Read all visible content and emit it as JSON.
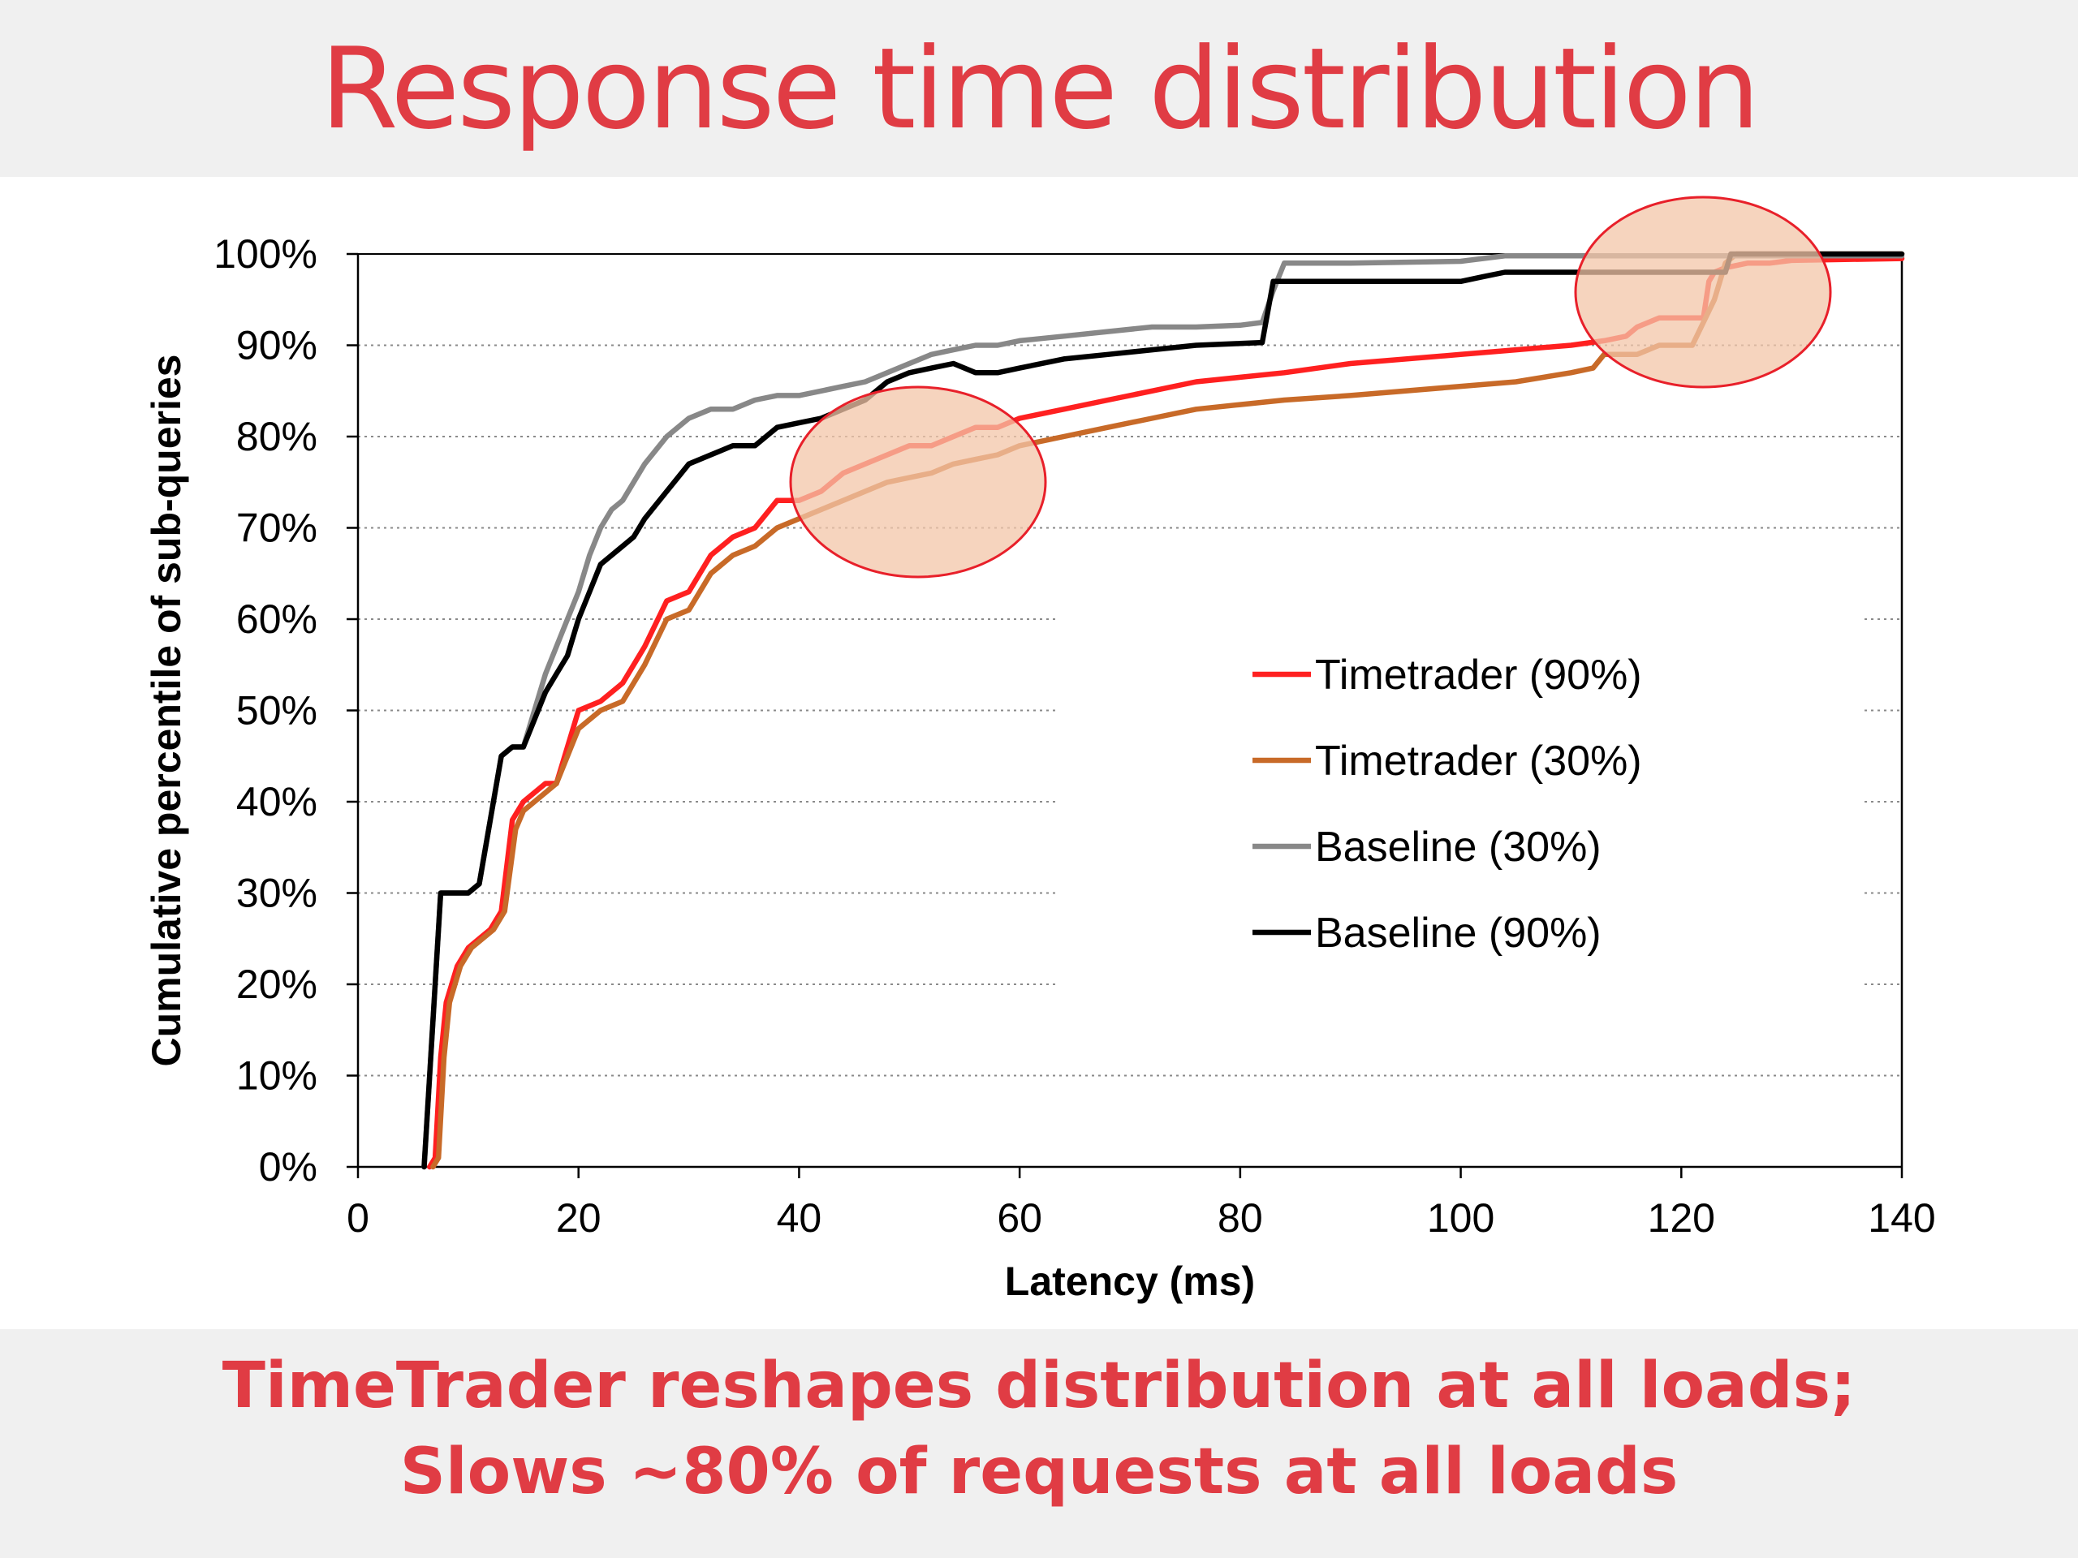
{
  "slide": {
    "title": "Response time distribution",
    "footer_lines": [
      "TimeTrader reshapes distribution at all loads;",
      "Slows ~80% of requests at all loads"
    ]
  },
  "colors": {
    "title": "#e03c44",
    "band": "#f0f0f0",
    "highlight_fill": "#f3c6a8",
    "highlight_stroke": "#e8202a"
  },
  "chart_data": {
    "type": "line",
    "xlabel": "Latency (ms)",
    "ylabel": "Cumulative percentile of sub-queries",
    "xlim": [
      0,
      140
    ],
    "ylim": [
      0,
      100
    ],
    "x_ticks": [
      0,
      20,
      40,
      60,
      80,
      100,
      120,
      140
    ],
    "y_ticks": [
      0,
      10,
      20,
      30,
      40,
      50,
      60,
      70,
      80,
      90,
      100
    ],
    "y_tick_suffix": "%",
    "grid": "horizontal dotted",
    "legend_position": "right-middle",
    "series": [
      {
        "name": "Timetrader (90%)",
        "color": "#ff2020",
        "points": [
          [
            6.5,
            0
          ],
          [
            7,
            1
          ],
          [
            7.5,
            12
          ],
          [
            8,
            18
          ],
          [
            9,
            22
          ],
          [
            10,
            24
          ],
          [
            11,
            25
          ],
          [
            12,
            26
          ],
          [
            13,
            28
          ],
          [
            14,
            38
          ],
          [
            15,
            40
          ],
          [
            16,
            41
          ],
          [
            17,
            42
          ],
          [
            18,
            42
          ],
          [
            19,
            46
          ],
          [
            20,
            50
          ],
          [
            22,
            51
          ],
          [
            24,
            53
          ],
          [
            26,
            57
          ],
          [
            28,
            62
          ],
          [
            30,
            63
          ],
          [
            32,
            67
          ],
          [
            34,
            69
          ],
          [
            36,
            70
          ],
          [
            38,
            73
          ],
          [
            40,
            73
          ],
          [
            42,
            74
          ],
          [
            44,
            76
          ],
          [
            46,
            77
          ],
          [
            48,
            78
          ],
          [
            50,
            79
          ],
          [
            52,
            79
          ],
          [
            54,
            80
          ],
          [
            56,
            81
          ],
          [
            58,
            81
          ],
          [
            60,
            82
          ],
          [
            64,
            83
          ],
          [
            68,
            84
          ],
          [
            72,
            85
          ],
          [
            76,
            86
          ],
          [
            80,
            86.5
          ],
          [
            84,
            87
          ],
          [
            90,
            88
          ],
          [
            100,
            89
          ],
          [
            105,
            89.5
          ],
          [
            110,
            90
          ],
          [
            113,
            90.5
          ],
          [
            115,
            91
          ],
          [
            116,
            92
          ],
          [
            118,
            93
          ],
          [
            120,
            93
          ],
          [
            122,
            93
          ],
          [
            122.5,
            97
          ],
          [
            123,
            98
          ],
          [
            124,
            98.5
          ],
          [
            126,
            99
          ],
          [
            128,
            99
          ],
          [
            130,
            99.3
          ],
          [
            140,
            99.5
          ]
        ]
      },
      {
        "name": "Timetrader (30%)",
        "color": "#c86a28",
        "points": [
          [
            6.8,
            0
          ],
          [
            7.3,
            1
          ],
          [
            7.8,
            12
          ],
          [
            8.3,
            18
          ],
          [
            9.3,
            22
          ],
          [
            10.3,
            24
          ],
          [
            11.3,
            25
          ],
          [
            12.3,
            26
          ],
          [
            13.3,
            28
          ],
          [
            14.3,
            37
          ],
          [
            15,
            39
          ],
          [
            16,
            40
          ],
          [
            17,
            41
          ],
          [
            18,
            42
          ],
          [
            19,
            45
          ],
          [
            20,
            48
          ],
          [
            22,
            50
          ],
          [
            24,
            51
          ],
          [
            26,
            55
          ],
          [
            28,
            60
          ],
          [
            30,
            61
          ],
          [
            32,
            65
          ],
          [
            34,
            67
          ],
          [
            36,
            68
          ],
          [
            38,
            70
          ],
          [
            40,
            71
          ],
          [
            42,
            72
          ],
          [
            44,
            73
          ],
          [
            46,
            74
          ],
          [
            48,
            75
          ],
          [
            50,
            75.5
          ],
          [
            52,
            76
          ],
          [
            54,
            77
          ],
          [
            56,
            77.5
          ],
          [
            58,
            78
          ],
          [
            60,
            79
          ],
          [
            64,
            80
          ],
          [
            68,
            81
          ],
          [
            72,
            82
          ],
          [
            76,
            83
          ],
          [
            80,
            83.5
          ],
          [
            84,
            84
          ],
          [
            90,
            84.5
          ],
          [
            100,
            85.5
          ],
          [
            105,
            86
          ],
          [
            110,
            87
          ],
          [
            112,
            87.5
          ],
          [
            113,
            89
          ],
          [
            116,
            89
          ],
          [
            118,
            90
          ],
          [
            120,
            90
          ],
          [
            121,
            90
          ],
          [
            123,
            95
          ],
          [
            124,
            99
          ],
          [
            125,
            100
          ],
          [
            140,
            100
          ]
        ]
      },
      {
        "name": "Baseline (30%)",
        "color": "#888888",
        "points": [
          [
            6,
            0
          ],
          [
            6.5,
            10
          ],
          [
            7,
            20
          ],
          [
            7.5,
            30
          ],
          [
            8,
            30
          ],
          [
            10,
            30
          ],
          [
            11,
            31
          ],
          [
            12,
            38
          ],
          [
            13,
            45
          ],
          [
            14,
            46
          ],
          [
            15,
            46
          ],
          [
            16,
            50
          ],
          [
            17,
            54
          ],
          [
            18,
            57
          ],
          [
            19,
            60
          ],
          [
            20,
            63
          ],
          [
            21,
            67
          ],
          [
            22,
            70
          ],
          [
            23,
            72
          ],
          [
            24,
            73
          ],
          [
            25,
            75
          ],
          [
            26,
            77
          ],
          [
            28,
            80
          ],
          [
            30,
            82
          ],
          [
            32,
            83
          ],
          [
            34,
            83
          ],
          [
            36,
            84
          ],
          [
            38,
            84.5
          ],
          [
            40,
            84.5
          ],
          [
            42,
            85
          ],
          [
            44,
            85.5
          ],
          [
            46,
            86
          ],
          [
            48,
            87
          ],
          [
            50,
            88
          ],
          [
            52,
            89
          ],
          [
            54,
            89.5
          ],
          [
            56,
            90
          ],
          [
            58,
            90
          ],
          [
            60,
            90.5
          ],
          [
            64,
            91
          ],
          [
            68,
            91.5
          ],
          [
            72,
            92
          ],
          [
            76,
            92
          ],
          [
            80,
            92.2
          ],
          [
            82,
            92.5
          ],
          [
            83,
            96
          ],
          [
            84,
            99
          ],
          [
            86,
            99
          ],
          [
            90,
            99
          ],
          [
            100,
            99.2
          ],
          [
            102,
            99.5
          ],
          [
            104,
            99.8
          ],
          [
            110,
            99.8
          ],
          [
            120,
            99.8
          ],
          [
            125,
            99.8
          ],
          [
            140,
            99.8
          ]
        ]
      },
      {
        "name": "Baseline (90%)",
        "color": "#000000",
        "points": [
          [
            6,
            0
          ],
          [
            6.5,
            10
          ],
          [
            7,
            20
          ],
          [
            7.5,
            30
          ],
          [
            8,
            30
          ],
          [
            10,
            30
          ],
          [
            11,
            31
          ],
          [
            12,
            38
          ],
          [
            13,
            45
          ],
          [
            14,
            46
          ],
          [
            15,
            46
          ],
          [
            16,
            49
          ],
          [
            17,
            52
          ],
          [
            18,
            54
          ],
          [
            19,
            56
          ],
          [
            20,
            60
          ],
          [
            21,
            63
          ],
          [
            22,
            66
          ],
          [
            23,
            67
          ],
          [
            24,
            68
          ],
          [
            25,
            69
          ],
          [
            26,
            71
          ],
          [
            28,
            74
          ],
          [
            30,
            77
          ],
          [
            32,
            78
          ],
          [
            34,
            79
          ],
          [
            36,
            79
          ],
          [
            38,
            81
          ],
          [
            40,
            81.5
          ],
          [
            42,
            82
          ],
          [
            44,
            83
          ],
          [
            46,
            84
          ],
          [
            48,
            86
          ],
          [
            50,
            87
          ],
          [
            52,
            87.5
          ],
          [
            54,
            88
          ],
          [
            56,
            87
          ],
          [
            58,
            87
          ],
          [
            60,
            87.5
          ],
          [
            64,
            88.5
          ],
          [
            68,
            89
          ],
          [
            72,
            89.5
          ],
          [
            76,
            90
          ],
          [
            80,
            90.2
          ],
          [
            82,
            90.3
          ],
          [
            83,
            97
          ],
          [
            86,
            97
          ],
          [
            90,
            97
          ],
          [
            100,
            97
          ],
          [
            102,
            97.5
          ],
          [
            104,
            98
          ],
          [
            110,
            98
          ],
          [
            120,
            98
          ],
          [
            124,
            98
          ],
          [
            124.5,
            100
          ],
          [
            140,
            100
          ]
        ]
      }
    ]
  }
}
